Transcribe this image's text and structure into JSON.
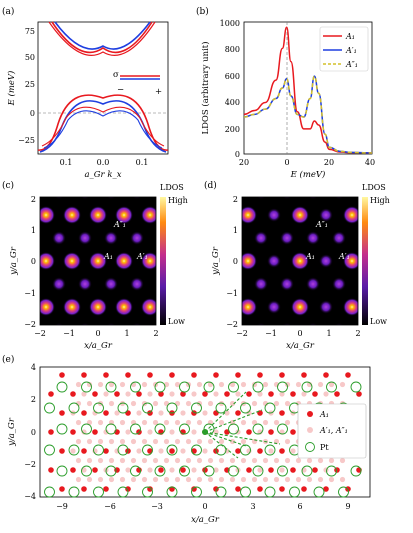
{
  "panels": {
    "a": {
      "label": "(a)",
      "ylabel": "E (meV)",
      "xlabel": "a_Gr k_x",
      "yticks": [
        "75",
        "50",
        "25",
        "0",
        "−25"
      ],
      "xticks": [
        "0.1",
        "0.0",
        "0.1"
      ],
      "legend_sigma": "σ",
      "legend_minus": "−",
      "legend_plus": "+"
    },
    "b": {
      "label": "(b)",
      "ylabel": "LDOS (arbitrary unit)",
      "xlabel": "E (meV)",
      "yticks": [
        "1000",
        "800",
        "600",
        "400",
        "200",
        "0"
      ],
      "xticks": [
        "20",
        "0",
        "20",
        "40"
      ],
      "legend": [
        "A₁",
        "A′₁",
        "A″₁"
      ]
    },
    "c": {
      "label": "(c)",
      "ylabel": "y/a_Gr",
      "xlabel": "x/a_Gr",
      "yticks": [
        "2",
        "1",
        "0",
        "−1",
        "−2"
      ],
      "xticks": [
        "−2",
        "−1",
        "0",
        "1",
        "2"
      ],
      "annotations": [
        "A″₁",
        "A₁",
        "A′₁"
      ],
      "colorbar": {
        "title": "LDOS",
        "high": "High",
        "low": "Low"
      }
    },
    "d": {
      "label": "(d)",
      "ylabel": "y/a_Gr",
      "xlabel": "x/a_Gr",
      "yticks": [
        "2",
        "1",
        "0",
        "−1",
        "−2"
      ],
      "xticks": [
        "−2",
        "−1",
        "0",
        "1",
        "2"
      ],
      "annotations": [
        "A″₁",
        "A₁",
        "A′₁"
      ],
      "colorbar": {
        "title": "LDOS",
        "high": "High",
        "low": "Low"
      }
    },
    "e": {
      "label": "(e)",
      "ylabel": "y/a_Gr",
      "xlabel": "x/a_Gr",
      "yticks": [
        "4",
        "2",
        "0",
        "−2",
        "−4"
      ],
      "xticks": [
        "−9",
        "−6",
        "−3",
        "0",
        "3",
        "6",
        "9"
      ],
      "legend": [
        "A₁",
        "A′₁, A″₁",
        "Pt"
      ]
    }
  },
  "colors": {
    "red": "#e8191f",
    "blue": "#1f3fe0",
    "yellow_dash": "#d4c02a",
    "green": "#2a9d2a",
    "pink": "#f7c8c8",
    "map_dark": "#000000",
    "map_spot": "#9b30ff"
  },
  "chart_data": [
    {
      "type": "line",
      "panel": "b",
      "xlabel": "E (meV)",
      "ylabel": "LDOS (arbitrary unit)",
      "xlim": [
        -20,
        40
      ],
      "ylim": [
        0,
        1000
      ],
      "series": [
        {
          "name": "A₁",
          "x": [
            -20,
            -15,
            -10,
            -5,
            -2,
            0,
            2,
            5,
            8,
            11,
            13,
            15,
            18,
            20,
            25,
            30,
            40
          ],
          "values": [
            300,
            330,
            390,
            560,
            800,
            960,
            700,
            320,
            190,
            190,
            250,
            220,
            90,
            35,
            15,
            10,
            8
          ]
        },
        {
          "name": "A′₁",
          "x": [
            -20,
            -15,
            -10,
            -5,
            -2,
            0,
            2,
            5,
            8,
            11,
            13,
            15,
            18,
            20,
            25,
            30,
            40
          ],
          "values": [
            280,
            300,
            340,
            420,
            500,
            570,
            440,
            300,
            280,
            420,
            590,
            460,
            150,
            50,
            20,
            12,
            8
          ]
        },
        {
          "name": "A″₁",
          "x": [
            -20,
            -15,
            -10,
            -5,
            -2,
            0,
            2,
            5,
            8,
            11,
            13,
            15,
            18,
            20,
            25,
            30,
            40
          ],
          "values": [
            280,
            300,
            340,
            420,
            500,
            570,
            440,
            300,
            280,
            420,
            590,
            460,
            150,
            50,
            20,
            12,
            8
          ]
        }
      ]
    }
  ]
}
